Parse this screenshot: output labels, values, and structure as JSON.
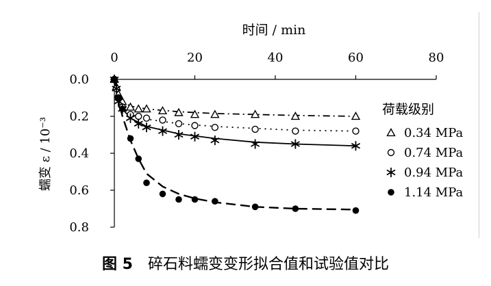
{
  "chart_data": {
    "type": "scatter",
    "title": "",
    "xlabel": "时间 / min",
    "ylabel": "蠕变 ε / 10⁻³",
    "xlim": [
      0,
      80
    ],
    "ylim": [
      0.0,
      0.8
    ],
    "y_inverted": true,
    "x_axis_position": "top",
    "x_ticks": [
      "0",
      "20",
      "40",
      "60",
      "80"
    ],
    "y_ticks": [
      "0.0",
      "0.2",
      "0.4",
      "0.6",
      "0.8"
    ],
    "legend_title": "荷载级别",
    "legend_position": "right",
    "series": [
      {
        "name": "0.34 MPa",
        "marker": "triangle-open",
        "line_style": "dash-dot",
        "points": [
          [
            0,
            0.0
          ],
          [
            0.5,
            0.04
          ],
          [
            1,
            0.08
          ],
          [
            2,
            0.12
          ],
          [
            4,
            0.15
          ],
          [
            6,
            0.16
          ],
          [
            8,
            0.16
          ],
          [
            12,
            0.17
          ],
          [
            16,
            0.18
          ],
          [
            20,
            0.19
          ],
          [
            25,
            0.19
          ],
          [
            35,
            0.19
          ],
          [
            45,
            0.2
          ],
          [
            60,
            0.2
          ]
        ],
        "fit": [
          [
            0,
            0.0
          ],
          [
            1,
            0.08
          ],
          [
            2,
            0.12
          ],
          [
            4,
            0.145
          ],
          [
            8,
            0.16
          ],
          [
            16,
            0.175
          ],
          [
            25,
            0.185
          ],
          [
            35,
            0.19
          ],
          [
            45,
            0.195
          ],
          [
            60,
            0.2
          ]
        ]
      },
      {
        "name": "0.74 MPa",
        "marker": "circle-open",
        "line_style": "dotted",
        "points": [
          [
            0,
            0.0
          ],
          [
            0.5,
            0.05
          ],
          [
            1,
            0.1
          ],
          [
            2,
            0.15
          ],
          [
            4,
            0.19
          ],
          [
            6,
            0.2
          ],
          [
            8,
            0.21
          ],
          [
            12,
            0.22
          ],
          [
            16,
            0.24
          ],
          [
            20,
            0.25
          ],
          [
            25,
            0.26
          ],
          [
            35,
            0.27
          ],
          [
            45,
            0.28
          ],
          [
            60,
            0.28
          ]
        ],
        "fit": [
          [
            0,
            0.0
          ],
          [
            1,
            0.1
          ],
          [
            2,
            0.15
          ],
          [
            4,
            0.19
          ],
          [
            8,
            0.215
          ],
          [
            16,
            0.24
          ],
          [
            25,
            0.255
          ],
          [
            35,
            0.265
          ],
          [
            45,
            0.275
          ],
          [
            60,
            0.28
          ]
        ]
      },
      {
        "name": "0.94 MPa",
        "marker": "asterisk",
        "line_style": "solid",
        "points": [
          [
            0,
            0.0
          ],
          [
            0.5,
            0.05
          ],
          [
            1,
            0.12
          ],
          [
            2,
            0.16
          ],
          [
            4,
            0.21
          ],
          [
            6,
            0.24
          ],
          [
            8,
            0.26
          ],
          [
            12,
            0.28
          ],
          [
            16,
            0.3
          ],
          [
            20,
            0.31
          ],
          [
            25,
            0.33
          ],
          [
            35,
            0.35
          ],
          [
            45,
            0.35
          ],
          [
            60,
            0.36
          ]
        ],
        "fit": [
          [
            0,
            0.0
          ],
          [
            1,
            0.11
          ],
          [
            2,
            0.16
          ],
          [
            4,
            0.21
          ],
          [
            8,
            0.255
          ],
          [
            16,
            0.295
          ],
          [
            25,
            0.32
          ],
          [
            35,
            0.34
          ],
          [
            45,
            0.35
          ],
          [
            60,
            0.36
          ]
        ]
      },
      {
        "name": "1.14 MPa",
        "marker": "circle-filled",
        "line_style": "dashed",
        "points": [
          [
            0,
            0.0
          ],
          [
            1,
            0.1
          ],
          [
            2,
            0.16
          ],
          [
            4,
            0.32
          ],
          [
            6,
            0.43
          ],
          [
            8,
            0.56
          ],
          [
            12,
            0.62
          ],
          [
            16,
            0.65
          ],
          [
            20,
            0.65
          ],
          [
            25,
            0.66
          ],
          [
            35,
            0.69
          ],
          [
            45,
            0.7
          ],
          [
            60,
            0.71
          ]
        ],
        "fit": [
          [
            0,
            0.0
          ],
          [
            1,
            0.11
          ],
          [
            2,
            0.2
          ],
          [
            4,
            0.33
          ],
          [
            6,
            0.43
          ],
          [
            8,
            0.51
          ],
          [
            12,
            0.58
          ],
          [
            16,
            0.62
          ],
          [
            20,
            0.645
          ],
          [
            25,
            0.665
          ],
          [
            35,
            0.69
          ],
          [
            45,
            0.7
          ],
          [
            60,
            0.705
          ]
        ]
      }
    ]
  },
  "caption": {
    "figure_label": "图 5",
    "text": "碎石料蠕变变形拟合值和试验值对比"
  }
}
